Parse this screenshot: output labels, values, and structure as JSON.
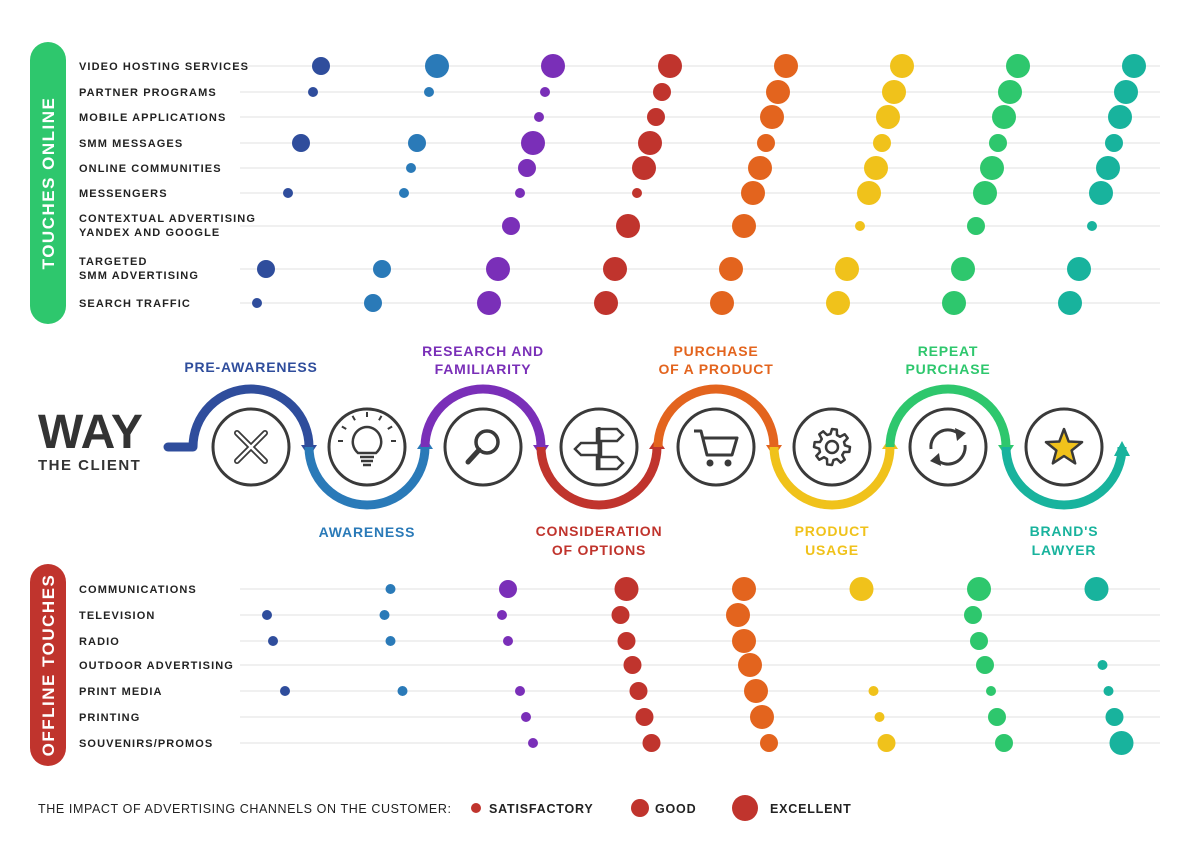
{
  "chart_data": {
    "type": "scatter",
    "title_main": "WAY",
    "title_sub": "THE CLIENT",
    "colors": [
      "#2f4d9c",
      "#2a7ab8",
      "#7a2fb8",
      "#c0342d",
      "#e3641e",
      "#f0c21b",
      "#2ec76d",
      "#18b39d"
    ],
    "stages": [
      {
        "label": [
          "PRE-AWARENESS"
        ],
        "icon": "close-x-icon"
      },
      {
        "label": [
          "AWARENESS"
        ],
        "icon": "lightbulb-icon"
      },
      {
        "label": [
          "RESEARCH AND",
          "FAMILIARITY"
        ],
        "icon": "magnifier-icon"
      },
      {
        "label": [
          "CONSIDERATION",
          "OF OPTIONS"
        ],
        "icon": "signpost-icon"
      },
      {
        "label": [
          "PURCHASE",
          "OF A PRODUCT"
        ],
        "icon": "shopping-cart-icon"
      },
      {
        "label": [
          "PRODUCT",
          "USAGE"
        ],
        "icon": "gear-icon"
      },
      {
        "label": [
          "REPEAT",
          "PURCHASE"
        ],
        "icon": "refresh-icon"
      },
      {
        "label": [
          "BRAND'S",
          "LAWYER"
        ],
        "icon": "star-icon"
      }
    ],
    "online": {
      "title": "TOUCHES ONLINE",
      "color": "#2ec76d",
      "rows": [
        {
          "label": [
            "VIDEO HOSTING SERVICES"
          ],
          "values": [
            2,
            3,
            3,
            3,
            3,
            3,
            3,
            3
          ]
        },
        {
          "label": [
            "PARTNER PROGRAMS"
          ],
          "values": [
            1,
            1,
            1,
            2,
            3,
            3,
            3,
            3
          ]
        },
        {
          "label": [
            "MOBILE APPLICATIONS"
          ],
          "values": [
            null,
            null,
            1,
            2,
            3,
            3,
            3,
            3
          ]
        },
        {
          "label": [
            "SMM MESSAGES"
          ],
          "values": [
            2,
            2,
            3,
            3,
            2,
            2,
            2,
            2
          ]
        },
        {
          "label": [
            "ONLINE COMMUNITIES"
          ],
          "values": [
            null,
            1,
            2,
            3,
            3,
            3,
            3,
            3
          ]
        },
        {
          "label": [
            "MESSENGERS"
          ],
          "values": [
            1,
            1,
            1,
            1,
            3,
            3,
            3,
            3
          ]
        },
        {
          "label": [
            "CONTEXTUAL ADVERTISING",
            "YANDEX AND GOOGLE"
          ],
          "values": [
            null,
            null,
            2,
            3,
            3,
            1,
            2,
            1
          ]
        },
        {
          "label": [
            "TARGETED",
            "SMM ADVERTISING"
          ],
          "values": [
            2,
            2,
            3,
            3,
            3,
            3,
            3,
            3
          ]
        },
        {
          "label": [
            "SEARCH TRAFFIC"
          ],
          "values": [
            1,
            2,
            3,
            3,
            3,
            3,
            3,
            3
          ]
        }
      ]
    },
    "offline": {
      "title": "OFFLINE TOUCHES",
      "color": "#c0342d",
      "rows": [
        {
          "label": [
            "COMMUNICATIONS"
          ],
          "values": [
            null,
            1,
            2,
            3,
            3,
            3,
            3,
            3
          ]
        },
        {
          "label": [
            "TELEVISION"
          ],
          "values": [
            1,
            1,
            1,
            2,
            3,
            null,
            2,
            null
          ]
        },
        {
          "label": [
            "RADIO"
          ],
          "values": [
            1,
            1,
            1,
            2,
            3,
            null,
            2,
            null
          ]
        },
        {
          "label": [
            "OUTDOOR ADVERTISING"
          ],
          "values": [
            null,
            null,
            null,
            2,
            3,
            null,
            2,
            1
          ]
        },
        {
          "label": [
            "PRINT MEDIA"
          ],
          "values": [
            1,
            1,
            1,
            2,
            3,
            1,
            1,
            1
          ]
        },
        {
          "label": [
            "PRINTING"
          ],
          "values": [
            null,
            null,
            1,
            2,
            3,
            1,
            2,
            2
          ]
        },
        {
          "label": [
            "SOUVENIRS/PROMOS"
          ],
          "values": [
            null,
            null,
            1,
            2,
            2,
            2,
            2,
            3
          ]
        }
      ]
    },
    "legend": {
      "title": "THE IMPACT OF ADVERTISING CHANNELS ON THE CUSTOMER:",
      "items": [
        {
          "label": "SATISFACTORY",
          "level": 1
        },
        {
          "label": "GOOD",
          "level": 2
        },
        {
          "label": "EXCELLENT",
          "level": 3
        }
      ],
      "color": "#c0342d"
    }
  }
}
